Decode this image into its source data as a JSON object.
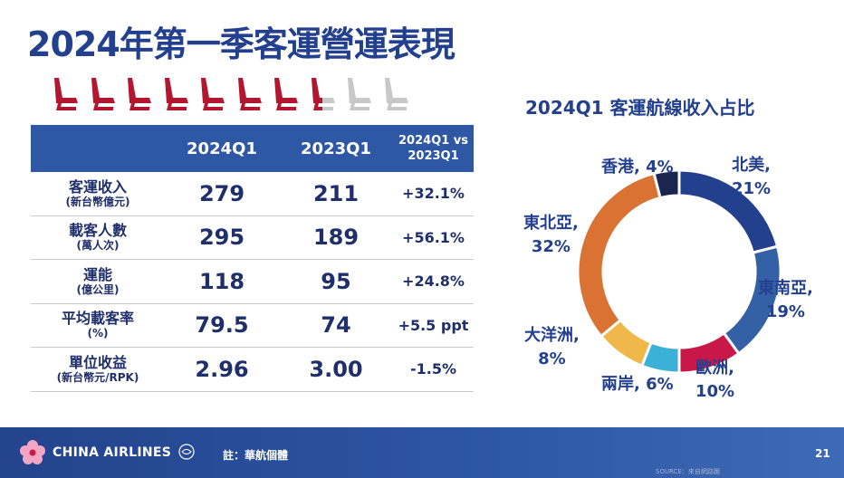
{
  "header": {
    "title": "2024年第一季客運營運表現"
  },
  "seats": {
    "filled": 7.5,
    "total": 10,
    "filled_color": "#b3172f",
    "empty_color": "#c8c8c8"
  },
  "table": {
    "headers": [
      "",
      "2024Q1",
      "2023Q1",
      "2024Q1 vs",
      "2023Q1"
    ],
    "rows": [
      {
        "label": "客運收入",
        "unit": "(新台幣億元)",
        "q1_2024": "279",
        "q1_2023": "211",
        "change": "+32.1%"
      },
      {
        "label": "載客人數",
        "unit": "(萬人次)",
        "q1_2024": "295",
        "q1_2023": "189",
        "change": "+56.1%"
      },
      {
        "label": "運能",
        "unit": "(億公里)",
        "q1_2024": "118",
        "q1_2023": "95",
        "change": "+24.8%"
      },
      {
        "label": "平均載客率",
        "unit": "(%)",
        "q1_2024": "79.5",
        "q1_2023": "74",
        "change": "+5.5 ppt"
      },
      {
        "label": "單位收益",
        "unit": "(新台幣元/RPK)",
        "q1_2024": "2.96",
        "q1_2023": "3.00",
        "change": "-1.5%"
      }
    ]
  },
  "donut": {
    "title": "2024Q1 客運航線收入占比",
    "labels": {
      "na": [
        "北美,",
        "21%"
      ],
      "sea": [
        "東南亞,",
        "19%"
      ],
      "eu": [
        "歐洲,",
        "10%"
      ],
      "cs": [
        "兩岸, 6%"
      ],
      "oc": [
        "大洋洲,",
        "8%"
      ],
      "nea": [
        "東北亞,",
        "32%"
      ],
      "hk": [
        "香港, 4%"
      ]
    }
  },
  "chart_data": {
    "type": "pie",
    "title": "2024Q1 客運航線收入占比",
    "categories": [
      "北美",
      "東南亞",
      "歐洲",
      "兩岸",
      "大洋洲",
      "東北亞",
      "香港"
    ],
    "values": [
      21,
      19,
      10,
      6,
      8,
      32,
      4
    ],
    "colors": [
      "#23408e",
      "#3461a6",
      "#c8184a",
      "#3bb1d8",
      "#f0b84a",
      "#d97233",
      "#1a2550"
    ],
    "donut": true
  },
  "footer": {
    "brand": "CHINA AIRLINES",
    "note": "註：華航個體",
    "page": "21",
    "source": "SOURCE：來自網路圖"
  }
}
